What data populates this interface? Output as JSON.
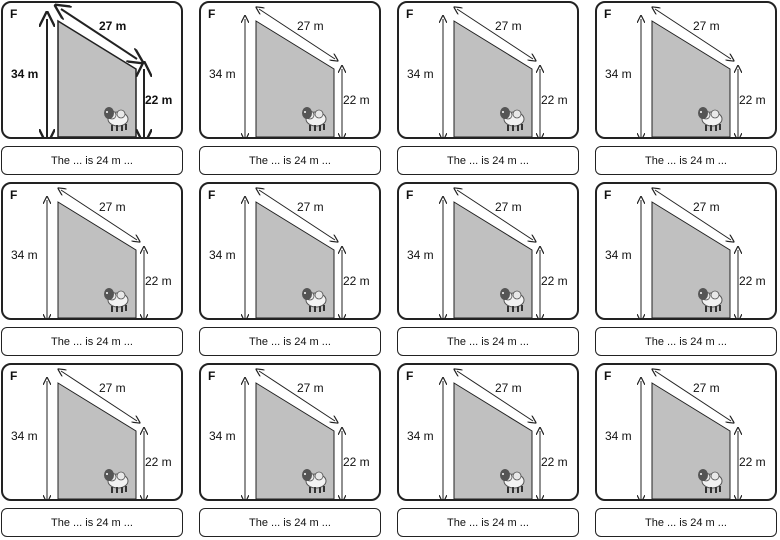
{
  "columns": 4,
  "rows": 3,
  "card": {
    "letter": "F",
    "top_length": "27 m",
    "left_length": "34 m",
    "right_length": "22 m",
    "sheep_icon": "sheep-icon",
    "caption": "The ... is 24 m ..."
  },
  "colors": {
    "shape_fill": "#c0c0c0",
    "outline": "#222222"
  }
}
